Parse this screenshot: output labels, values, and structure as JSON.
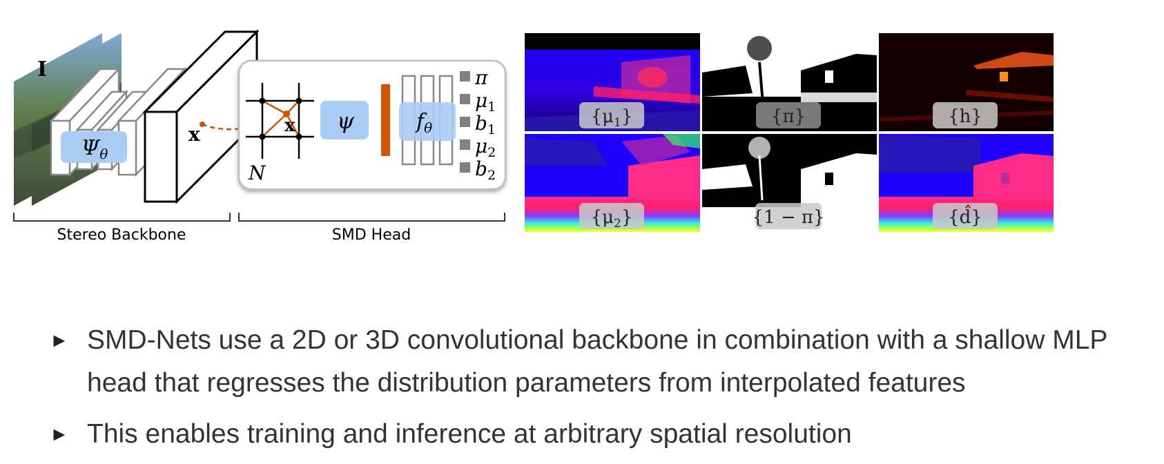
{
  "diagram": {
    "input_label": "I",
    "backbone_label": "Ψθ",
    "backbone_symbol": "Ψ",
    "backbone_sub": "θ",
    "query_point": "x",
    "grid_label": "N",
    "psi_label": "ψ",
    "mlp_label": "fθ",
    "mlp_symbol": "f",
    "mlp_sub": "θ",
    "outputs": [
      {
        "main": "π",
        "sub": ""
      },
      {
        "main": "μ",
        "sub": "1"
      },
      {
        "main": "b",
        "sub": "1"
      },
      {
        "main": "μ",
        "sub": "2"
      },
      {
        "main": "b",
        "sub": "2"
      }
    ],
    "stereo_caption": "Stereo Backbone",
    "head_caption": "SMD Head",
    "colors": {
      "accent_orange": "#d35400",
      "feature_blue": "#a9cdf5",
      "output_square": "#808080"
    }
  },
  "maps": [
    {
      "label_main": "{μ",
      "label_sub": "1",
      "label_end": "}"
    },
    {
      "label_main": "{π}",
      "label_sub": "",
      "label_end": ""
    },
    {
      "label_main": "{h}",
      "label_sub": "",
      "label_end": ""
    },
    {
      "label_main": "{μ",
      "label_sub": "2",
      "label_end": "}"
    },
    {
      "label_main": "{1 − π}",
      "label_sub": "",
      "label_end": ""
    },
    {
      "label_main": "{d̂}",
      "label_sub": "",
      "label_end": ""
    }
  ],
  "bullets": [
    "SMD-Nets use a 2D or 3D convolutional backbone in combination with a shallow MLP head that regresses the distribution parameters from interpolated features",
    "This enables training and inference at arbitrary spatial resolution"
  ],
  "bullet_marker": "►"
}
